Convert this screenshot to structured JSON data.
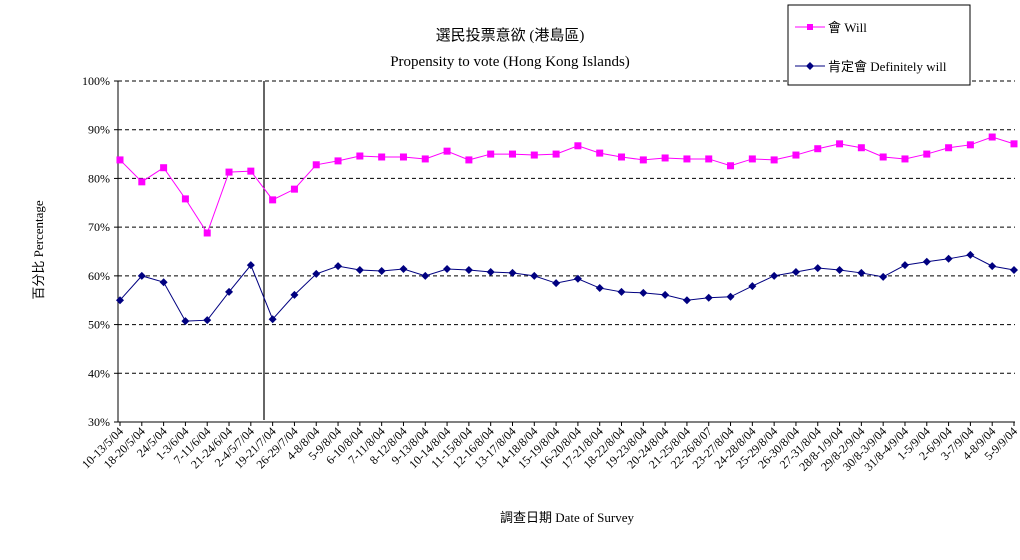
{
  "chart_data": {
    "type": "line",
    "title": "選民投票意欲 (港島區)",
    "subtitle": "Propensity to vote (Hong Kong Islands)",
    "xlabel": "調查日期 Date of Survey",
    "ylabel": "百分比 Percentage",
    "ylim": [
      30,
      100
    ],
    "yticks": [
      "30%",
      "40%",
      "50%",
      "60%",
      "70%",
      "80%",
      "90%",
      "100%"
    ],
    "grid": "horizontal dashed",
    "legend": "top-right",
    "categories": [
      "10-13/5/04",
      "18-20/5/04",
      "24/5/04",
      "1-3/6/04",
      "7-11/6/04",
      "21-24/6/04",
      "2-4/5/7/04",
      "19-21/7/04",
      "26-29/7/04",
      "4-8/8/04",
      "5-9/8/04",
      "6-10/8/04",
      "7-11/8/04",
      "8-12/8/04",
      "9-13/8/04",
      "10-14/8/04",
      "11-15/8/04",
      "12-16/8/04",
      "13-17/8/04",
      "14-18/8/04",
      "15-19/8/04",
      "16-20/8/04",
      "17-21/8/04",
      "18-22/8/04",
      "19-23/8/04",
      "20-24/8/04",
      "21-25/8/04",
      "22-26/8/07",
      "23-27/8/04",
      "24-28/8/04",
      "25-29/8/04",
      "26-30/8/04",
      "27-31/8/04",
      "28/8-1/9/04",
      "29/8-2/9/04",
      "30/8-3/9/04",
      "31/8-4/9/04",
      "1-5/9/04",
      "2-6/9/04",
      "3-7/9/04",
      "4-8/9/04",
      "5-9/9/04"
    ],
    "series": [
      {
        "name": "會 Will",
        "color": "#ff00ff",
        "marker": "square",
        "values": [
          83.8,
          79.3,
          82.2,
          75.8,
          68.8,
          81.3,
          81.5,
          75.6,
          77.8,
          82.8,
          83.6,
          84.6,
          84.4,
          84.4,
          84.0,
          85.6,
          83.8,
          85.0,
          85.0,
          84.8,
          85.0,
          86.7,
          85.2,
          84.4,
          83.8,
          84.2,
          84.0,
          84.0,
          82.6,
          84.0,
          83.8,
          84.8,
          86.1,
          87.1,
          86.3,
          84.4,
          84.0,
          85.0,
          86.3,
          86.9,
          88.5,
          87.1
        ]
      },
      {
        "name": "肯定會 Definitely will",
        "color": "#000080",
        "marker": "diamond",
        "values": [
          55.0,
          60.0,
          58.7,
          50.7,
          50.9,
          56.7,
          62.2,
          51.1,
          56.1,
          60.4,
          62.0,
          61.2,
          61.0,
          61.4,
          60.0,
          61.4,
          61.2,
          60.8,
          60.6,
          60.0,
          58.5,
          59.4,
          57.5,
          56.7,
          56.5,
          56.1,
          55.0,
          55.5,
          55.7,
          57.9,
          60.0,
          60.8,
          61.6,
          61.2,
          60.6,
          59.8,
          62.2,
          62.9,
          63.5,
          64.3,
          62.0,
          61.2
        ]
      }
    ]
  }
}
